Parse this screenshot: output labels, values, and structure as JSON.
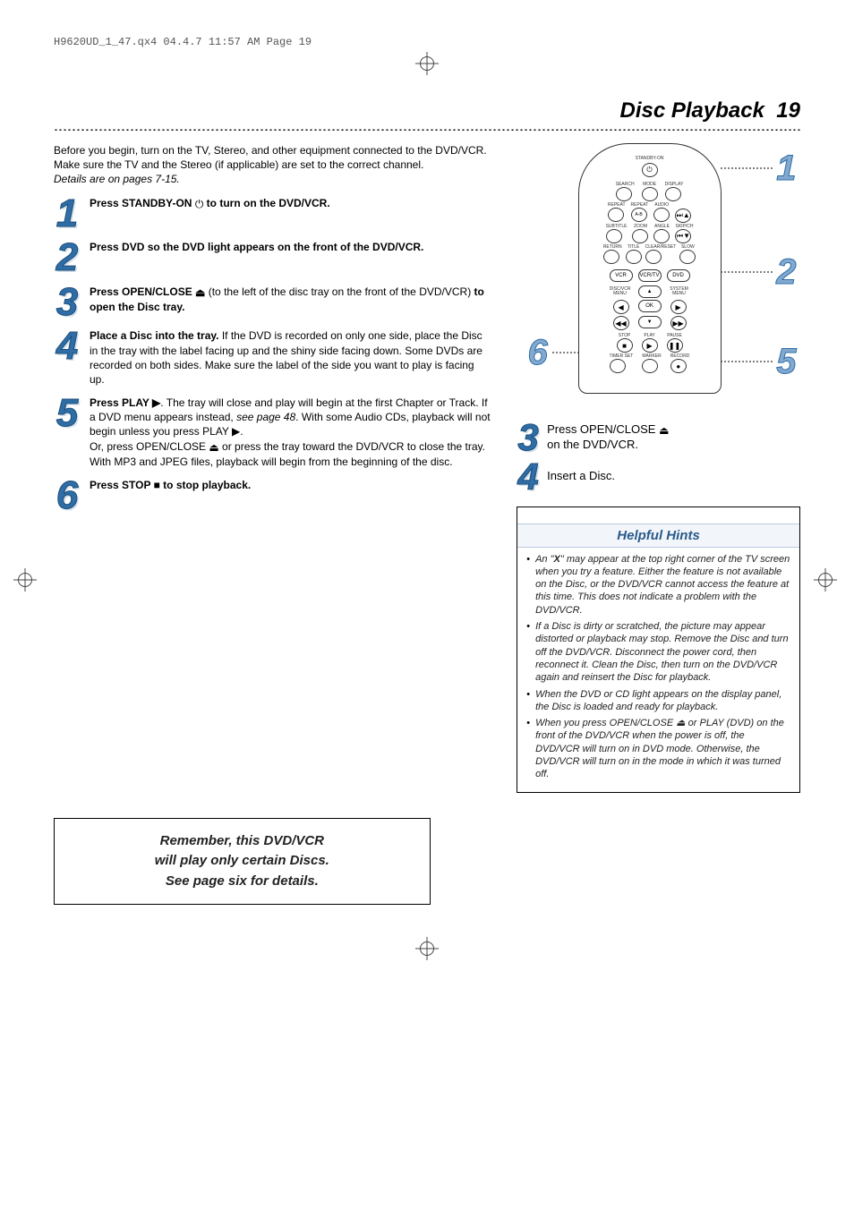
{
  "header_info": "H9620UD_1_47.qx4  04.4.7  11:57 AM  Page 19",
  "title": "Disc Playback",
  "page_number": "19",
  "intro": {
    "line1": "Before you begin, turn on the TV, Stereo, and other equipment connected to the DVD/VCR. Make sure the TV and the Stereo (if applicable) are set to the correct channel.",
    "details": "Details are on pages 7-15."
  },
  "left_steps": [
    {
      "num": "1",
      "html": "<span class='b'>Press STANDBY-ON</span> <span class='glyph'>⏻</span> <span class='b'>to turn on the DVD/VCR.</span>"
    },
    {
      "num": "2",
      "html": "<span class='b'>Press DVD so the DVD light appears on the front of the DVD/VCR.</span>"
    },
    {
      "num": "3",
      "html": "<span class='b'>Press OPEN/CLOSE <span class='glyph'>⏏</span></span> (to the left of the disc tray on the front of the DVD/VCR) <span class='b'>to open the Disc tray.</span>"
    },
    {
      "num": "4",
      "html": "<span class='b'>Place a Disc into the tray.</span> If the DVD is recorded on only one side, place the Disc in the tray with the label facing up and the shiny side facing down. Some DVDs are recorded on both sides. Make sure the label of the side you want to play is facing up."
    },
    {
      "num": "5",
      "html": "<span class='b'>Press PLAY ▶</span>. The tray will close and play will begin at the first Chapter or Track. If a DVD menu appears instead, <span class='i'>see page 48</span>. With some Audio CDs, playback will not begin unless you press PLAY ▶.<br>Or, press OPEN/CLOSE <span class='glyph'>⏏</span> or press the tray toward the DVD/VCR to close the tray.<br>With MP3 and JPEG files, playback will begin from the beginning of the disc."
    },
    {
      "num": "6",
      "html": "<span class='b'>Press STOP ■ to stop playback.</span>"
    }
  ],
  "remote": {
    "top_label": "STANDBY-ON",
    "rows": [
      {
        "labels": [
          "SEARCH",
          "MODE",
          "DISPLAY"
        ],
        "symbols": [
          "",
          "",
          ""
        ]
      },
      {
        "labels": [
          "REPEAT",
          "REPEAT",
          "AUDIO"
        ],
        "symbols": [
          "",
          "A-B",
          ""
        ]
      },
      {
        "labels": [
          "",
          "",
          ""
        ],
        "symbols": [
          "",
          "",
          "⏭▲"
        ],
        "side": true
      },
      {
        "labels": [
          "SUBTITLE",
          "ZOOM",
          "ANGLE",
          "SKIP/CH"
        ],
        "symbols": [
          "",
          "",
          "",
          ""
        ]
      },
      {
        "labels": [
          "",
          "",
          ""
        ],
        "symbols": [
          "",
          "",
          "⏮▼"
        ],
        "side": true
      },
      {
        "labels": [
          "RETURN",
          "TITLE",
          "CLEAR/RESET",
          "SLOW"
        ],
        "symbols": [
          "",
          "",
          "",
          ""
        ]
      }
    ],
    "ovals": {
      "left": "VCR",
      "mid": "VCR/TV",
      "right": "DVD"
    },
    "menu_row": {
      "left": "DISC/VCR MENU",
      "up": "▲",
      "right": "SYSTEM MENU"
    },
    "nav": {
      "left": "◀",
      "ok": "OK",
      "right": "▶",
      "down": "▼",
      "ff": "▶▶",
      "rw": "◀◀"
    },
    "bottom_labels": {
      "stop": "STOP",
      "play": "PLAY",
      "pause": "PAUSE"
    },
    "bottom_symbols": {
      "stop": "■",
      "play": "▶",
      "pause": "❚❚"
    },
    "very_bottom_labels": [
      "TIMER SET",
      "MARKER",
      "RECORD"
    ],
    "very_bottom_symbol": "●"
  },
  "callouts": {
    "c1": "1",
    "c2": "2",
    "c5": "5",
    "c6": "6"
  },
  "right_steps": [
    {
      "num": "3",
      "html": "Press OPEN/CLOSE <span class='glyph'>⏏</span><br><span class='b'>on the DVD/VCR.</span>"
    },
    {
      "num": "4",
      "html": "Insert a Disc."
    }
  ],
  "hints_title": "Helpful Hints",
  "hints": [
    "An \"X\" may appear at the top right corner of the TV screen when you try a feature. Either the feature is not available on the Disc, or the DVD/VCR cannot access the feature at this time. This does not indicate a problem with the DVD/VCR.",
    "If a Disc is dirty or scratched, the picture may appear distorted or playback may stop. Remove the Disc and turn off the DVD/VCR. Disconnect the power cord, then reconnect it. Clean the Disc, then turn on the DVD/VCR again and reinsert the Disc for playback.",
    "When the DVD or CD light appears on the display panel, the Disc is loaded and ready for playback.",
    "When you press OPEN/CLOSE ⏏ or PLAY (DVD) on the front of the DVD/VCR when the power is off, the DVD/VCR will turn on in DVD mode. Otherwise, the DVD/VCR will turn on in the mode in which it was turned off."
  ],
  "remember": "Remember, this DVD/VCR\nwill play only certain Discs.\nSee page six for details."
}
